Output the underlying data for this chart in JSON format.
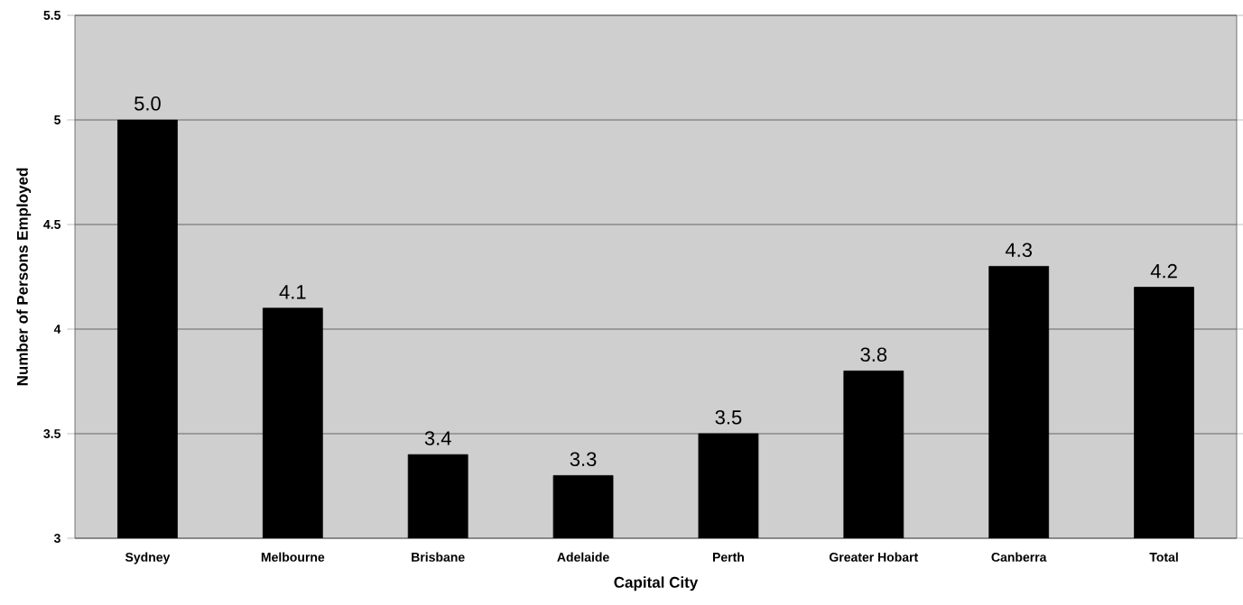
{
  "chart_data": {
    "type": "bar",
    "xlabel": "Capital City",
    "ylabel": "Number of Persons Employed",
    "categories": [
      "Sydney",
      "Melbourne",
      "Brisbane",
      "Adelaide",
      "Perth",
      "Greater Hobart",
      "Canberra",
      "Total"
    ],
    "values": [
      5.0,
      4.1,
      3.4,
      3.3,
      3.5,
      3.8,
      4.3,
      4.2
    ],
    "value_labels": [
      "5.0",
      "4.1",
      "3.4",
      "3.3",
      "3.5",
      "3.8",
      "4.3",
      "4.2"
    ],
    "color": "#000000",
    "ylim": [
      3,
      5.5
    ],
    "yticks": [
      3,
      3.5,
      4,
      4.5,
      5,
      5.5
    ],
    "grid": "y"
  }
}
